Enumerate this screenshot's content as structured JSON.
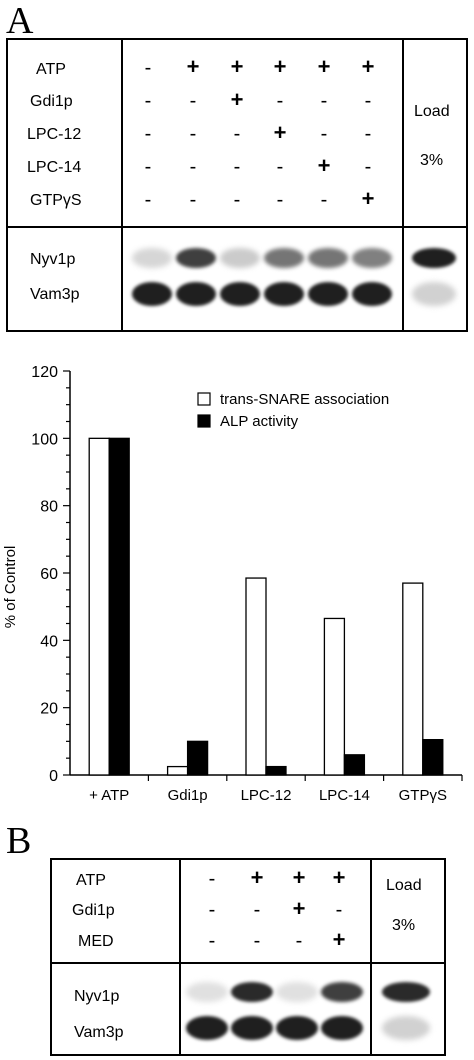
{
  "panel_a": {
    "letter": "A",
    "conditions": {
      "rows": [
        {
          "label": "ATP",
          "marks": [
            "-",
            "+",
            "+",
            "+",
            "+",
            "+"
          ]
        },
        {
          "label": "Gdi1p",
          "marks": [
            "-",
            "-",
            "+",
            "-",
            "-",
            "-"
          ]
        },
        {
          "label": "LPC-12",
          "marks": [
            "-",
            "-",
            "-",
            "+",
            "-",
            "-"
          ]
        },
        {
          "label": "LPC-14",
          "marks": [
            "-",
            "-",
            "-",
            "-",
            "+",
            "-"
          ]
        },
        {
          "label": "GTPγS",
          "marks": [
            "-",
            "-",
            "-",
            "-",
            "-",
            "+"
          ]
        }
      ],
      "load_label": "Load",
      "load_percent": "3%"
    },
    "blot": {
      "rows": [
        {
          "label": "Nyv1p",
          "band_intensities": [
            0.1,
            0.8,
            0.15,
            0.55,
            0.55,
            0.5
          ],
          "load_intensity": 0.95
        },
        {
          "label": "Vam3p",
          "band_intensities": [
            0.95,
            0.95,
            0.95,
            0.95,
            0.95,
            0.95
          ],
          "load_intensity": 0.12
        }
      ]
    }
  },
  "chart_data": {
    "type": "bar",
    "categories": [
      "+ ATP",
      "Gdi1p",
      "LPC-12",
      "LPC-14",
      "GTPγS"
    ],
    "series": [
      {
        "name": "trans-SNARE association",
        "values": [
          100,
          2.5,
          58.5,
          46.5,
          57
        ],
        "color": "#ffffff"
      },
      {
        "name": "ALP activity",
        "values": [
          100,
          10,
          2.5,
          6,
          10.5
        ],
        "color": "#000000"
      }
    ],
    "ylabel": "% of Control",
    "xlabel": "",
    "ylim": [
      0,
      120
    ],
    "yticks": [
      0,
      20,
      40,
      60,
      80,
      100,
      120
    ],
    "legend_position": "top-right",
    "grid": false
  },
  "panel_b": {
    "letter": "B",
    "conditions": {
      "rows": [
        {
          "label": "ATP",
          "marks": [
            "-",
            "+",
            "+",
            "+"
          ]
        },
        {
          "label": "Gdi1p",
          "marks": [
            "-",
            "-",
            "+",
            "-"
          ]
        },
        {
          "label": "MED",
          "marks": [
            "-",
            "-",
            "-",
            "+"
          ]
        }
      ],
      "load_label": "Load",
      "load_percent": "3%"
    },
    "blot": {
      "rows": [
        {
          "label": "Nyv1p",
          "band_intensities": [
            0.05,
            0.9,
            0.05,
            0.8
          ],
          "load_intensity": 0.9
        },
        {
          "label": "Vam3p",
          "band_intensities": [
            0.95,
            0.95,
            0.95,
            0.95
          ],
          "load_intensity": 0.12
        }
      ]
    }
  }
}
